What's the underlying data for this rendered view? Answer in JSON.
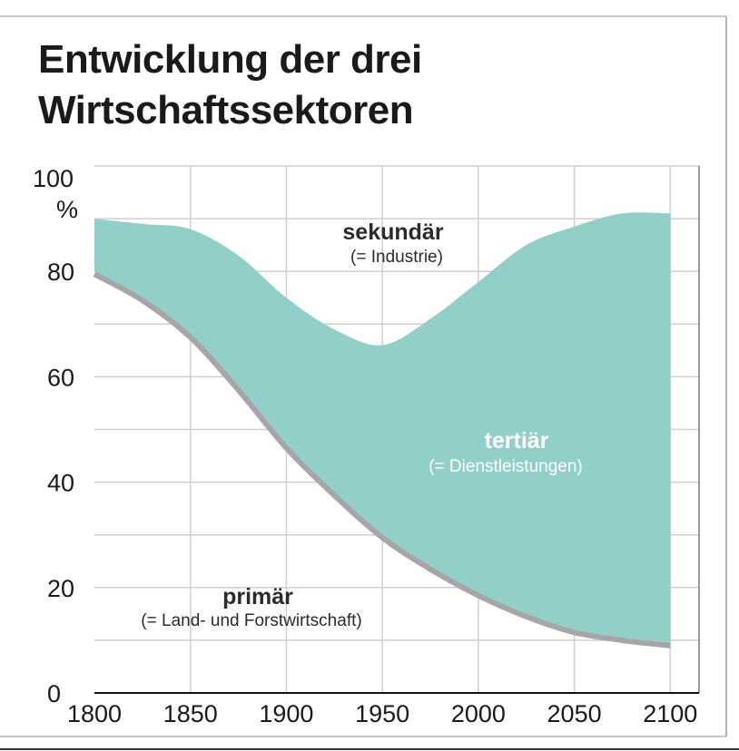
{
  "chart_data": {
    "type": "area",
    "title": "Entwicklung der drei Wirtschaftssektoren",
    "title_lines": [
      "Entwicklung der drei",
      "Wirtschaftssektoren"
    ],
    "y_unit": "%",
    "xlim": [
      1800,
      2100
    ],
    "ylim": [
      0,
      100
    ],
    "x_ticks": [
      1800,
      1850,
      1900,
      1950,
      2000,
      2050,
      2100
    ],
    "y_ticks": [
      0,
      20,
      40,
      60,
      80,
      100
    ],
    "grid": true,
    "series": [
      {
        "name": "primär",
        "sub": "(= Land- und Forstwirtschaft)",
        "color": "#a6a6a8",
        "x": [
          1800,
          1825,
          1850,
          1875,
          1900,
          1925,
          1950,
          1975,
          2000,
          2025,
          2050,
          2075,
          2100
        ],
        "values": [
          80,
          75,
          68,
          58,
          47,
          38,
          30,
          24,
          19,
          15,
          12,
          10.5,
          9.5
        ]
      },
      {
        "name": "tertiär",
        "sub": "(= Dienstleistungen)",
        "color": "#91cfc8",
        "x": [
          1800,
          1825,
          1850,
          1875,
          1900,
          1925,
          1950,
          1975,
          2000,
          2025,
          2050,
          2075,
          2100
        ],
        "values": [
          10,
          14,
          20,
          25,
          28,
          31,
          36,
          47,
          59,
          70,
          76.5,
          80.5,
          81.5
        ]
      },
      {
        "name": "sekundär",
        "sub": "(= Industrie)",
        "color": "#ffffff",
        "x": [
          1800,
          1825,
          1850,
          1875,
          1900,
          1925,
          1950,
          1975,
          2000,
          2025,
          2050,
          2075,
          2100
        ],
        "values": [
          10,
          11,
          12,
          17,
          25,
          31,
          34,
          29,
          22,
          15,
          11.5,
          9,
          9
        ]
      }
    ],
    "boundary_color": "#a6a6a8",
    "grid_color": "#cfcfcf",
    "axis_color": "#9a9a9a"
  }
}
